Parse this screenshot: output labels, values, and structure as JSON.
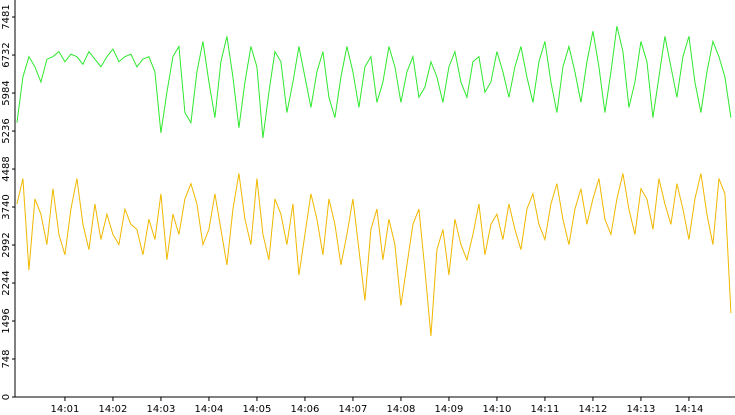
{
  "chart_data": {
    "type": "line",
    "x": [
      840,
      840.125,
      840.25,
      840.375,
      840.5,
      840.625,
      840.75,
      840.875,
      841,
      841.125,
      841.25,
      841.375,
      841.5,
      841.625,
      841.75,
      841.875,
      842,
      842.125,
      842.25,
      842.375,
      842.5,
      842.625,
      842.75,
      842.875,
      843,
      843.125,
      843.25,
      843.375,
      843.5,
      843.625,
      843.75,
      843.875,
      844,
      844.125,
      844.25,
      844.375,
      844.5,
      844.625,
      844.75,
      844.875,
      845,
      845.125,
      845.25,
      845.375,
      845.5,
      845.625,
      845.75,
      845.875,
      846,
      846.125,
      846.25,
      846.375,
      846.5,
      846.625,
      846.75,
      846.875,
      847,
      847.125,
      847.25,
      847.375,
      847.5,
      847.625,
      847.75,
      847.875,
      848,
      848.125,
      848.25,
      848.375,
      848.5,
      848.625,
      848.75,
      848.875,
      849,
      849.125,
      849.25,
      849.375,
      849.5,
      849.625,
      849.75,
      849.875,
      850,
      850.125,
      850.25,
      850.375,
      850.5,
      850.625,
      850.75,
      850.875,
      851,
      851.125,
      851.25,
      851.375,
      851.5,
      851.625,
      851.75,
      851.875,
      852,
      852.125,
      852.25,
      852.375,
      852.5,
      852.625,
      852.75,
      852.875,
      853,
      853.125,
      853.25,
      853.375,
      853.5,
      853.625,
      853.75,
      853.875,
      854,
      854.125,
      854.25,
      854.375,
      854.5,
      854.625,
      854.75,
      854.875
    ],
    "series": [
      {
        "color": "#2ee82e",
        "values": [
          5400,
          6300,
          6700,
          6500,
          6200,
          6650,
          6700,
          6800,
          6600,
          6750,
          6700,
          6550,
          6800,
          6650,
          6500,
          6700,
          6850,
          6600,
          6700,
          6750,
          6500,
          6650,
          6700,
          6400,
          5200,
          6000,
          6700,
          6900,
          5600,
          5400,
          6400,
          7000,
          6200,
          5500,
          6600,
          7100,
          6300,
          5300,
          6200,
          6900,
          6500,
          5100,
          6000,
          6800,
          6600,
          5600,
          6200,
          6900,
          6300,
          5700,
          6400,
          6800,
          5900,
          5500,
          6300,
          6900,
          6400,
          5700,
          6500,
          6700,
          5800,
          6200,
          6900,
          6500,
          5800,
          6400,
          6700,
          5900,
          6100,
          6600,
          6300,
          5800,
          6500,
          6800,
          6200,
          5900,
          6600,
          6700,
          6000,
          6200,
          6800,
          6400,
          5900,
          6500,
          6900,
          6300,
          5800,
          6600,
          7000,
          6200,
          5600,
          6500,
          6900,
          6400,
          5800,
          6600,
          7200,
          6500,
          5600,
          6400,
          7300,
          6800,
          5700,
          6200,
          7000,
          6600,
          5500,
          6300,
          7100,
          6500,
          5900,
          6700,
          7100,
          6200,
          5600,
          6400,
          7000,
          6700,
          6300,
          5500
        ]
      },
      {
        "color": "#f0b800",
        "values": [
          3800,
          4300,
          2500,
          3900,
          3600,
          3000,
          4100,
          3200,
          2800,
          3700,
          4300,
          3400,
          2900,
          3800,
          3100,
          3600,
          3200,
          3000,
          3700,
          3400,
          3300,
          2800,
          3500,
          3100,
          4000,
          2700,
          3600,
          3200,
          3900,
          4200,
          3800,
          3000,
          3300,
          4000,
          3300,
          2600,
          3700,
          4400,
          3500,
          3000,
          4300,
          3200,
          2700,
          3900,
          3600,
          3000,
          3800,
          2400,
          3200,
          4000,
          3500,
          2800,
          3900,
          3400,
          2600,
          3200,
          3900,
          2900,
          1900,
          3300,
          3700,
          2700,
          3500,
          3000,
          1800,
          2600,
          3400,
          3700,
          2500,
          1200,
          2900,
          3300,
          2400,
          3500,
          3000,
          2700,
          3200,
          3800,
          2800,
          3400,
          3600,
          3100,
          3800,
          3300,
          2900,
          3700,
          4000,
          3400,
          3100,
          3800,
          4200,
          3500,
          3000,
          3700,
          4100,
          3400,
          3900,
          4300,
          3500,
          3200,
          3900,
          4400,
          3700,
          3200,
          4100,
          3900,
          3300,
          4300,
          3800,
          3400,
          4200,
          3700,
          3100,
          3900,
          4400,
          3600,
          3000,
          4300,
          4000,
          1650
        ]
      }
    ],
    "xlim": [
      839.96,
      854.96
    ],
    "xticks": [
      {
        "value": 841,
        "label": "14:01"
      },
      {
        "value": 842,
        "label": "14:02"
      },
      {
        "value": 843,
        "label": "14:03"
      },
      {
        "value": 844,
        "label": "14:04"
      },
      {
        "value": 845,
        "label": "14:05"
      },
      {
        "value": 846,
        "label": "14:06"
      },
      {
        "value": 847,
        "label": "14:07"
      },
      {
        "value": 848,
        "label": "14:08"
      },
      {
        "value": 849,
        "label": "14:09"
      },
      {
        "value": 850,
        "label": "14:10"
      },
      {
        "value": 851,
        "label": "14:11"
      },
      {
        "value": 852,
        "label": "14:12"
      },
      {
        "value": 853,
        "label": "14:13"
      },
      {
        "value": 854,
        "label": "14:14"
      }
    ],
    "ylim": [
      0,
      7481
    ],
    "yticks": [
      0,
      748,
      1496,
      2244,
      2992,
      3740,
      4488,
      5236,
      5984,
      6732,
      7481
    ]
  }
}
